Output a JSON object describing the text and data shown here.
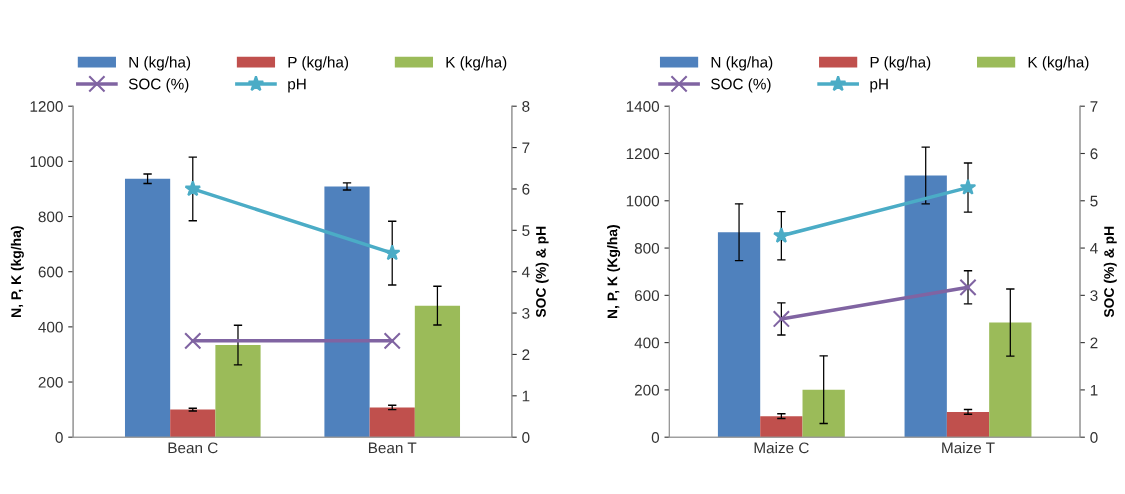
{
  "chart_data": [
    {
      "type": "bar",
      "categories": [
        "Bean C",
        "Bean T"
      ],
      "ylabel": "N, P, K (kg/ha)",
      "y2label": "SOC (%) & pH",
      "ylim": [
        0,
        1200
      ],
      "yticks": [
        0,
        200,
        400,
        600,
        800,
        1000,
        1200
      ],
      "y2lim": [
        0,
        8
      ],
      "y2ticks": [
        0,
        1,
        2,
        3,
        4,
        5,
        6,
        7,
        8
      ],
      "legend": "top",
      "grid": false,
      "series": [
        {
          "name": "N (kg/ha)",
          "color": "#4f81bd",
          "values": [
            937,
            909
          ],
          "errors": [
            17,
            13
          ]
        },
        {
          "name": "P (kg/ha)",
          "color": "#c0504d",
          "values": [
            100,
            108
          ],
          "errors": [
            5,
            8
          ]
        },
        {
          "name": "K (kg/ha)",
          "color": "#9bbb59",
          "values": [
            334,
            477
          ],
          "errors": [
            72,
            70
          ]
        },
        {
          "name": "SOC (%)",
          "type": "line",
          "axis": "y2",
          "marker": "cross",
          "color": "#8064a2",
          "values": [
            2.33,
            2.33
          ]
        },
        {
          "name": "pH",
          "type": "line",
          "axis": "y2",
          "marker": "star",
          "color": "#4bacc6",
          "values": [
            6.0,
            4.45
          ],
          "errors": [
            0.77,
            0.77
          ]
        }
      ]
    },
    {
      "type": "bar",
      "categories": [
        "Maize C",
        "Maize T"
      ],
      "ylabel": "N, P, K (Kg/ha)",
      "y2label": "SOC (%) & pH",
      "ylim": [
        0,
        1400
      ],
      "yticks": [
        0,
        200,
        400,
        600,
        800,
        1000,
        1200,
        1400
      ],
      "y2lim": [
        0,
        7
      ],
      "y2ticks": [
        0,
        1,
        2,
        3,
        4,
        5,
        6,
        7
      ],
      "legend": "top",
      "grid": false,
      "series": [
        {
          "name": "N (kg/ha)",
          "color": "#4f81bd",
          "values": [
            867,
            1107
          ],
          "errors": [
            120,
            120
          ]
        },
        {
          "name": "P (kg/ha)",
          "color": "#c0504d",
          "values": [
            89,
            107
          ],
          "errors": [
            10,
            10
          ]
        },
        {
          "name": "K (kg/ha)",
          "color": "#9bbb59",
          "values": [
            201,
            485
          ],
          "errors": [
            143,
            142
          ]
        },
        {
          "name": "SOC (%)",
          "type": "line",
          "axis": "y2",
          "marker": "cross",
          "color": "#8064a2",
          "values": [
            2.5,
            3.17
          ],
          "errors": [
            0.34,
            0.35
          ]
        },
        {
          "name": "pH",
          "type": "line",
          "axis": "y2",
          "marker": "star",
          "color": "#4bacc6",
          "values": [
            4.26,
            5.28
          ],
          "errors": [
            0.51,
            0.52
          ]
        }
      ]
    }
  ]
}
